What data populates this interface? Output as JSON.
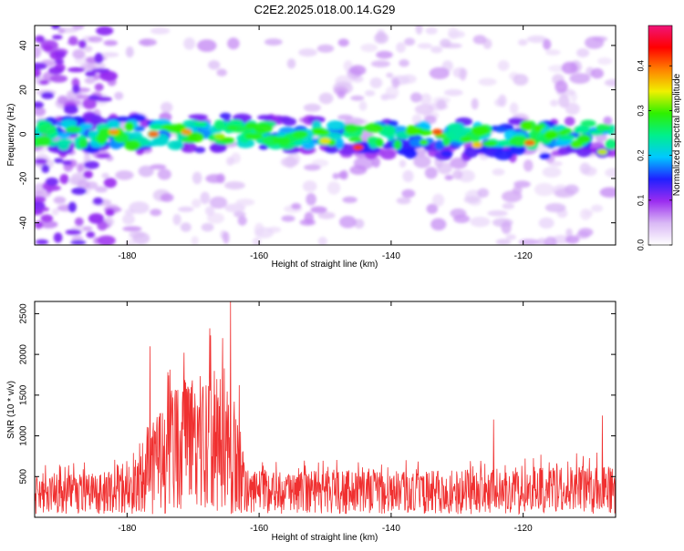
{
  "title": "C2E2.2025.018.00.14.G29",
  "colors": {
    "series": "#f03030",
    "colormap": [
      "#ffffff",
      "#d9b8f5",
      "#9b2cf0",
      "#2020ff",
      "#00c8ff",
      "#00f08c",
      "#2ef000",
      "#f0f000",
      "#ff8000",
      "#ff0000",
      "#f0147a"
    ]
  },
  "chart_data": [
    {
      "type": "heatmap",
      "xlabel": "Height of straight line (km)",
      "ylabel": "Frequency (Hz)",
      "xlim": [
        -194,
        -106
      ],
      "ylim": [
        -50,
        49
      ],
      "xticks": [
        -180,
        -160,
        -140,
        -120
      ],
      "yticks": [
        -40,
        -20,
        0,
        20,
        40
      ],
      "colorbar": {
        "label": "Normalized spectral amplitude",
        "range": [
          0.0,
          0.49
        ],
        "ticks": [
          "0.0",
          "0.1",
          "0.2",
          "0.3",
          "0.4"
        ]
      },
      "description_points": [
        {
          "x": -182,
          "y": 1,
          "v": 0.38
        },
        {
          "x": -176,
          "y": 0,
          "v": 0.4
        },
        {
          "x": -171,
          "y": 1,
          "v": 0.38
        },
        {
          "x": -166,
          "y": -1,
          "v": 0.32
        },
        {
          "x": -150,
          "y": -3,
          "v": 0.35
        },
        {
          "x": -145,
          "y": -6,
          "v": 0.42
        },
        {
          "x": -133,
          "y": 1,
          "v": 0.41
        },
        {
          "x": -127,
          "y": -5,
          "v": 0.36
        },
        {
          "x": -119,
          "y": -4,
          "v": 0.4
        },
        {
          "x": -112,
          "y": -5,
          "v": 0.3
        },
        {
          "x": -108,
          "y": -8,
          "v": 0.33
        }
      ]
    },
    {
      "type": "line",
      "xlabel": "Height of straight line (km)",
      "ylabel": "SNR (10 * v/v)",
      "xlim": [
        -194,
        -106
      ],
      "ylim": [
        0,
        2650
      ],
      "xticks": [
        -180,
        -160,
        -140,
        -120
      ],
      "yticks": [
        500,
        1000,
        1500,
        2000,
        2500
      ],
      "envelope": [
        {
          "x": -194,
          "y": 520
        },
        {
          "x": -186,
          "y": 540
        },
        {
          "x": -180,
          "y": 580
        },
        {
          "x": -177,
          "y": 1100
        },
        {
          "x": -175,
          "y": 1400
        },
        {
          "x": -172,
          "y": 1700
        },
        {
          "x": -169,
          "y": 1750
        },
        {
          "x": -167,
          "y": 1800
        },
        {
          "x": -165,
          "y": 1850
        },
        {
          "x": -163,
          "y": 1300
        },
        {
          "x": -162,
          "y": 600
        },
        {
          "x": -155,
          "y": 560
        },
        {
          "x": -145,
          "y": 590
        },
        {
          "x": -135,
          "y": 560
        },
        {
          "x": -125,
          "y": 620
        },
        {
          "x": -115,
          "y": 620
        },
        {
          "x": -106,
          "y": 680
        }
      ],
      "peaks": [
        {
          "x": -176.5,
          "y": 2100
        },
        {
          "x": -167.5,
          "y": 2320
        },
        {
          "x": -165.5,
          "y": 2200
        },
        {
          "x": -164.3,
          "y": 2650
        },
        {
          "x": -124.5,
          "y": 1200
        },
        {
          "x": -108,
          "y": 1250
        }
      ]
    }
  ]
}
